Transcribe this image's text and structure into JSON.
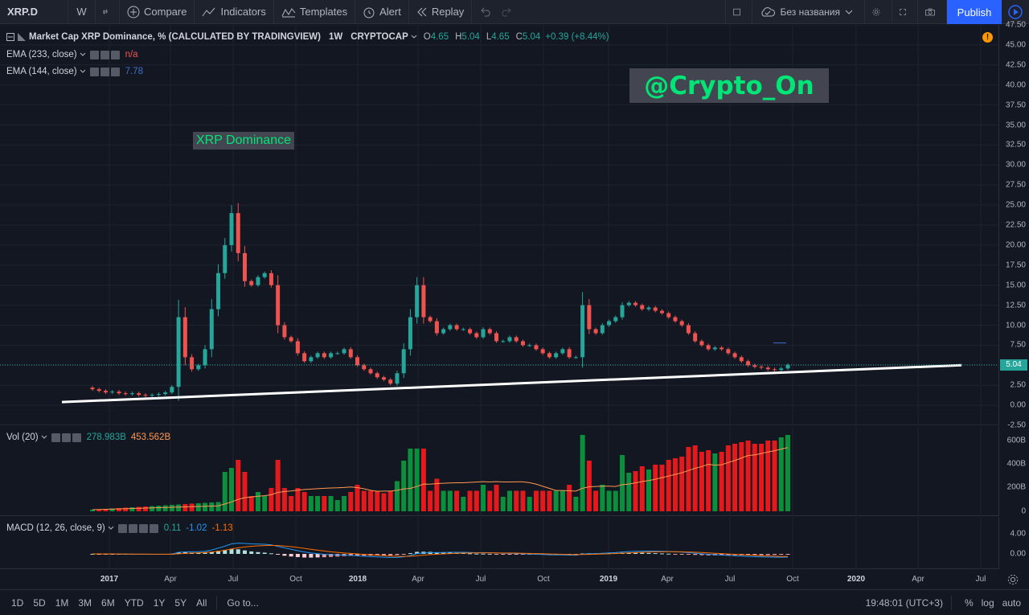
{
  "toolbar": {
    "symbol": "XRP.D",
    "interval": "W",
    "compare": "Compare",
    "indicators": "Indicators",
    "templates": "Templates",
    "alert": "Alert",
    "replay": "Replay",
    "layout_name": "Без названия",
    "publish": "Publish"
  },
  "legend": {
    "title": "Market Cap XRP Dominance, % (CALCULATED BY TRADINGVIEW)",
    "interval": "1W",
    "exchange": "CRYPTOCAP",
    "o_label": "O",
    "o_value": "4.65",
    "h_label": "H",
    "h_value": "5.04",
    "l_label": "L",
    "l_value": "4.65",
    "c_label": "C",
    "c_value": "5.04",
    "change": "+0.39 (+8.44%)",
    "ema1": "EMA (233, close)",
    "ema1_value": "n/a",
    "ema2": "EMA (144, close)",
    "ema2_value": "7.78"
  },
  "watermark": "@Crypto_On",
  "annotation": "XRP Dominance",
  "price_scale": [
    "47.50",
    "45.00",
    "42.50",
    "40.00",
    "37.50",
    "35.00",
    "32.50",
    "30.00",
    "27.50",
    "25.00",
    "22.50",
    "20.00",
    "17.50",
    "15.00",
    "12.50",
    "10.00",
    "7.50",
    "5.00",
    "2.50",
    "0.00",
    "-2.50"
  ],
  "last_price": "5.04",
  "volume": {
    "label": "Vol (20)",
    "value1": "278.983B",
    "value2": "453.562B",
    "scale": [
      "600B",
      "400B",
      "200B",
      "0"
    ]
  },
  "macd": {
    "label": "MACD (12, 26, close, 9)",
    "v1": "0.11",
    "v2": "-1.02",
    "v3": "-1.13",
    "scale": [
      "4.00",
      "0.00"
    ]
  },
  "time_axis": [
    {
      "label": "2017",
      "year": true
    },
    {
      "label": "Apr",
      "year": false
    },
    {
      "label": "Jul",
      "year": false
    },
    {
      "label": "Oct",
      "year": false
    },
    {
      "label": "2018",
      "year": true
    },
    {
      "label": "Apr",
      "year": false
    },
    {
      "label": "Jul",
      "year": false
    },
    {
      "label": "Oct",
      "year": false
    },
    {
      "label": "2019",
      "year": true
    },
    {
      "label": "Apr",
      "year": false
    },
    {
      "label": "Jul",
      "year": false
    },
    {
      "label": "Oct",
      "year": false
    },
    {
      "label": "2020",
      "year": true
    },
    {
      "label": "Apr",
      "year": false
    },
    {
      "label": "Jul",
      "year": false
    }
  ],
  "bottom": {
    "ranges": [
      "1D",
      "5D",
      "1M",
      "3M",
      "6M",
      "YTD",
      "1Y",
      "5Y",
      "All"
    ],
    "goto": "Go to...",
    "clock": "19:48:01 (UTC+3)",
    "percent": "%",
    "log": "log",
    "auto": "auto"
  },
  "colors": {
    "up": "#26a69a",
    "down": "#ef5350",
    "vol_up": "#0a8f3c",
    "vol_down": "#e5191b",
    "accent": "#2962ff"
  },
  "chart_data": {
    "type": "candlestick",
    "title": "Market Cap XRP Dominance, % (CALCULATED BY TRADINGVIEW)",
    "interval": "1W",
    "ylim": [
      -2.5,
      47.5
    ],
    "x_range": [
      "2016-11",
      "2020-08"
    ],
    "close": [
      2.0,
      1.8,
      1.6,
      1.7,
      1.5,
      1.4,
      1.5,
      1.3,
      1.2,
      1.3,
      1.4,
      1.6,
      2.3,
      11.0,
      6.0,
      4.5,
      5.0,
      7.0,
      12.0,
      16.5,
      20.0,
      24.0,
      19.0,
      15.5,
      15.0,
      16.0,
      16.5,
      15.0,
      10.0,
      8.5,
      8.0,
      6.5,
      5.5,
      6.0,
      6.5,
      6.0,
      6.5,
      6.5,
      7.0,
      6.0,
      5.0,
      4.5,
      4.0,
      3.5,
      3.2,
      2.7,
      4.0,
      7.0,
      11.0,
      15.0,
      11.0,
      10.5,
      9.0,
      9.5,
      10.0,
      9.5,
      9.5,
      9.0,
      8.5,
      9.5,
      9.0,
      8.0,
      8.0,
      8.5,
      8.0,
      7.5,
      7.5,
      7.0,
      6.5,
      6.0,
      6.5,
      7.0,
      6.0,
      6.0,
      12.5,
      9.5,
      9.0,
      10.0,
      10.5,
      11.0,
      12.5,
      12.8,
      12.5,
      12.0,
      12.2,
      11.8,
      11.5,
      11.0,
      10.5,
      10.0,
      9.0,
      8.0,
      7.5,
      7.0,
      7.2,
      7.0,
      6.5,
      6.0,
      5.5,
      5.0,
      4.8,
      4.7,
      4.5,
      4.4,
      4.6,
      5.04
    ],
    "annotations": [
      "XRP Dominance",
      "@Crypto_On"
    ],
    "trendline": {
      "from": [
        0.0,
        0.4
      ],
      "to": [
        1.0,
        5.0
      ]
    },
    "volume_label": "Vol (20)",
    "macd_label": "MACD (12, 26, close, 9)"
  }
}
